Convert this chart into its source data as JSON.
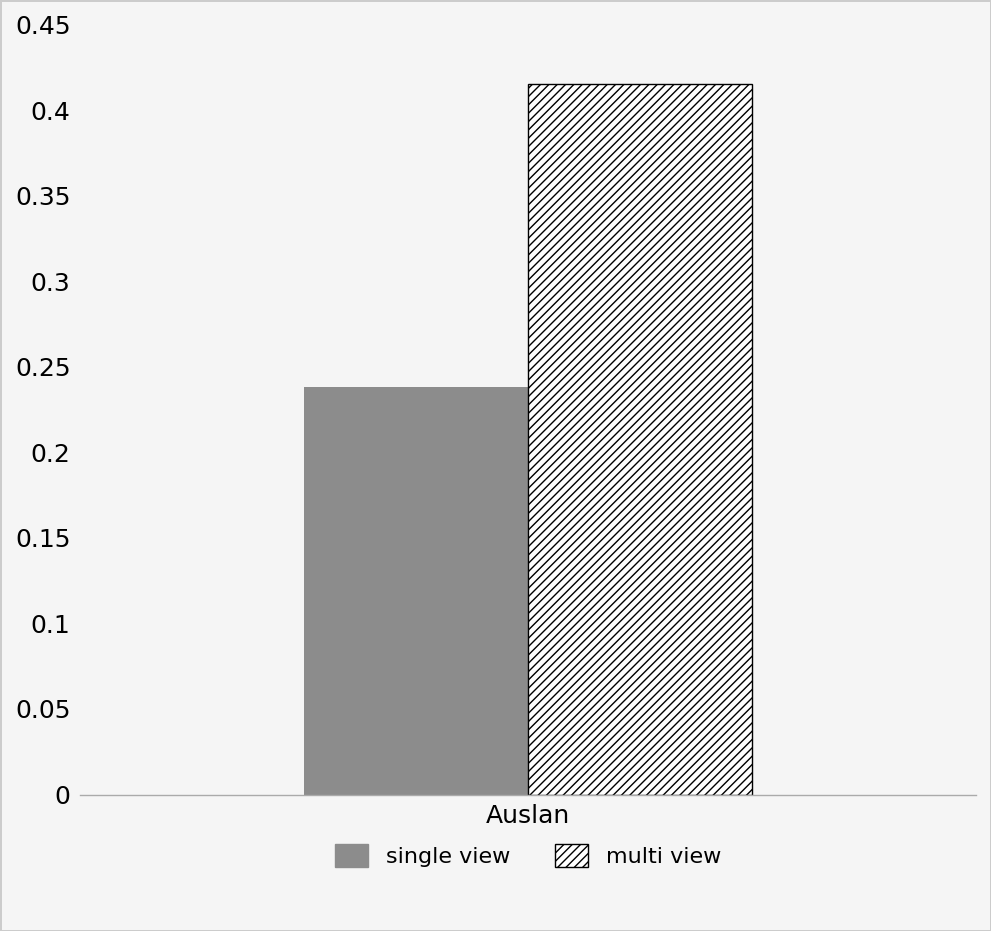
{
  "categories": [
    "Auslan"
  ],
  "single_view_values": [
    0.238
  ],
  "multi_view_values": [
    0.415
  ],
  "single_view_color": "#8c8c8c",
  "multi_view_color": "#ffffff",
  "multi_view_hatch": "////",
  "ylim": [
    0,
    0.45
  ],
  "yticks": [
    0,
    0.05,
    0.1,
    0.15,
    0.2,
    0.25,
    0.3,
    0.35,
    0.4,
    0.45
  ],
  "legend_labels": [
    "single view",
    "multi view"
  ],
  "bar_width": 0.35,
  "background_color": "#f5f5f5",
  "figure_edge_color": "#cccccc"
}
